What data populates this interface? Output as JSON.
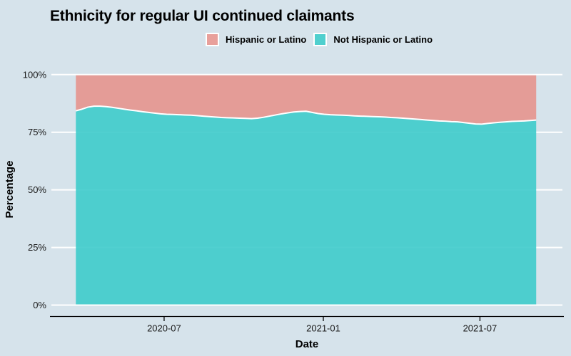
{
  "title": "Ethnicity for regular UI continued claimants",
  "colors": {
    "background": "#d6e3eb",
    "gridline": "#ffffff",
    "axis_line": "#000000",
    "tick_text": "#1a1a1a",
    "title_text": "#000000"
  },
  "legend": {
    "position": "top-center",
    "items": [
      {
        "label": "Hispanic or Latino",
        "color": "#e8a09b"
      },
      {
        "label": "Not Hispanic or Latino",
        "color": "#4fcfce"
      }
    ]
  },
  "chart_data": {
    "type": "area",
    "stacked": true,
    "title": "Ethnicity for regular UI continued claimants",
    "xlabel": "Date",
    "ylabel": "Percentage",
    "ylim": [
      0,
      100
    ],
    "grid": "horizontal-white",
    "legend_position": "top",
    "y_tick_labels": [
      "0%",
      "25%",
      "50%",
      "75%",
      "100%"
    ],
    "y_tick_values": [
      0,
      25,
      50,
      75,
      100
    ],
    "x_tick_labels": [
      "2020-07",
      "2021-01",
      "2021-07"
    ],
    "x_range": [
      "2020-03-21",
      "2021-09-04"
    ],
    "dates": [
      "2020-03-21",
      "2020-03-28",
      "2020-04-04",
      "2020-04-11",
      "2020-04-18",
      "2020-04-25",
      "2020-05-02",
      "2020-05-09",
      "2020-05-16",
      "2020-05-23",
      "2020-05-30",
      "2020-06-06",
      "2020-06-13",
      "2020-06-20",
      "2020-06-27",
      "2020-07-04",
      "2020-07-11",
      "2020-07-18",
      "2020-07-25",
      "2020-08-01",
      "2020-08-08",
      "2020-08-15",
      "2020-08-22",
      "2020-08-29",
      "2020-09-05",
      "2020-09-12",
      "2020-09-19",
      "2020-09-26",
      "2020-10-03",
      "2020-10-10",
      "2020-10-17",
      "2020-10-24",
      "2020-10-31",
      "2020-11-07",
      "2020-11-14",
      "2020-11-21",
      "2020-11-28",
      "2020-12-05",
      "2020-12-12",
      "2020-12-19",
      "2020-12-26",
      "2021-01-02",
      "2021-01-09",
      "2021-01-16",
      "2021-01-23",
      "2021-01-30",
      "2021-02-06",
      "2021-02-13",
      "2021-02-20",
      "2021-02-27",
      "2021-03-06",
      "2021-03-13",
      "2021-03-20",
      "2021-03-27",
      "2021-04-03",
      "2021-04-10",
      "2021-04-17",
      "2021-04-24",
      "2021-05-01",
      "2021-05-08",
      "2021-05-15",
      "2021-05-22",
      "2021-05-29",
      "2021-06-05",
      "2021-06-12",
      "2021-06-19",
      "2021-06-26",
      "2021-07-03",
      "2021-07-10",
      "2021-07-17",
      "2021-07-24",
      "2021-07-31",
      "2021-08-07",
      "2021-08-14",
      "2021-08-21",
      "2021-08-28",
      "2021-09-04"
    ],
    "series": [
      {
        "name": "Hispanic or Latino",
        "legend_color": "#e8a09b",
        "area_color": "#e6938e",
        "values": [
          15.7,
          15.0,
          14.1,
          13.7,
          13.7,
          13.9,
          14.2,
          14.6,
          15.0,
          15.4,
          15.7,
          16.1,
          16.4,
          16.7,
          17.0,
          17.2,
          17.3,
          17.4,
          17.5,
          17.6,
          17.8,
          18.0,
          18.2,
          18.4,
          18.6,
          18.7,
          18.8,
          18.9,
          19.0,
          19.1,
          18.9,
          18.5,
          18.0,
          17.5,
          17.0,
          16.6,
          16.2,
          16.0,
          15.9,
          16.4,
          16.9,
          17.2,
          17.4,
          17.5,
          17.6,
          17.7,
          17.9,
          18.0,
          18.1,
          18.2,
          18.3,
          18.4,
          18.6,
          18.7,
          18.9,
          19.1,
          19.3,
          19.5,
          19.7,
          19.9,
          20.1,
          20.2,
          20.4,
          20.5,
          20.8,
          21.1,
          21.4,
          21.5,
          21.2,
          20.9,
          20.7,
          20.5,
          20.3,
          20.2,
          20.1,
          19.9,
          19.7
        ]
      },
      {
        "name": "Not Hispanic or Latino",
        "legend_color": "#4fcfce",
        "area_color": "#3ecbcb",
        "values": [
          84.3,
          85.0,
          85.9,
          86.3,
          86.3,
          86.1,
          85.8,
          85.4,
          85.0,
          84.6,
          84.3,
          83.9,
          83.6,
          83.3,
          83.0,
          82.8,
          82.7,
          82.6,
          82.5,
          82.4,
          82.2,
          82.0,
          81.8,
          81.6,
          81.4,
          81.3,
          81.2,
          81.1,
          81.0,
          80.9,
          81.1,
          81.5,
          82.0,
          82.5,
          83.0,
          83.4,
          83.8,
          84.0,
          84.1,
          83.6,
          83.1,
          82.8,
          82.6,
          82.5,
          82.4,
          82.3,
          82.1,
          82.0,
          81.9,
          81.8,
          81.7,
          81.6,
          81.4,
          81.3,
          81.1,
          80.9,
          80.7,
          80.5,
          80.3,
          80.1,
          79.9,
          79.8,
          79.6,
          79.5,
          79.2,
          78.9,
          78.6,
          78.5,
          78.8,
          79.1,
          79.3,
          79.5,
          79.7,
          79.8,
          79.9,
          80.1,
          80.3
        ]
      }
    ]
  }
}
